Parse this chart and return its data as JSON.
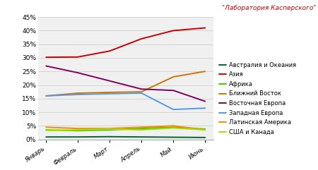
{
  "months": [
    "Январь",
    "Февраль",
    "Март",
    "Апрель",
    "Май",
    "Июнь"
  ],
  "series": [
    {
      "label": "Австралия и Океания",
      "color": "#006633",
      "values": [
        0.9,
        0.9,
        1.0,
        0.9,
        0.8,
        0.7
      ]
    },
    {
      "label": "Азия",
      "color": "#cc0000",
      "values": [
        30.2,
        30.3,
        32.5,
        37.0,
        40.0,
        41.0
      ]
    },
    {
      "label": "Африка",
      "color": "#33cc00",
      "values": [
        3.5,
        3.2,
        3.5,
        4.0,
        4.5,
        3.8
      ]
    },
    {
      "label": "Ближний Восток",
      "color": "#cc7700",
      "values": [
        16.0,
        17.0,
        17.3,
        17.5,
        23.0,
        25.0
      ]
    },
    {
      "label": "Восточная Европа",
      "color": "#800060",
      "values": [
        27.0,
        24.5,
        21.5,
        18.5,
        18.0,
        14.0
      ]
    },
    {
      "label": "Западная Европа",
      "color": "#5599ee",
      "values": [
        16.0,
        16.5,
        16.8,
        17.0,
        11.0,
        11.5
      ]
    },
    {
      "label": "Латинская Америка",
      "color": "#ff8800",
      "values": [
        4.5,
        4.0,
        4.0,
        4.5,
        5.0,
        3.5
      ]
    },
    {
      "label": "США и Канада",
      "color": "#aadd00",
      "values": [
        3.3,
        3.5,
        3.8,
        3.5,
        4.2,
        3.5
      ]
    }
  ],
  "ylim": [
    0,
    0.45
  ],
  "yticks": [
    0.0,
    0.05,
    0.1,
    0.15,
    0.2,
    0.25,
    0.3,
    0.35,
    0.4,
    0.45
  ],
  "ytick_labels": [
    "0%",
    "5%",
    "10%",
    "15%",
    "20%",
    "25%",
    "30%",
    "35%",
    "40%",
    "45%"
  ],
  "watermark": "\"Лаборатория Касперского\"",
  "plot_bg": "#f0f0f0",
  "fig_bg": "#ffffff",
  "grid_color": "#d0d0d0"
}
